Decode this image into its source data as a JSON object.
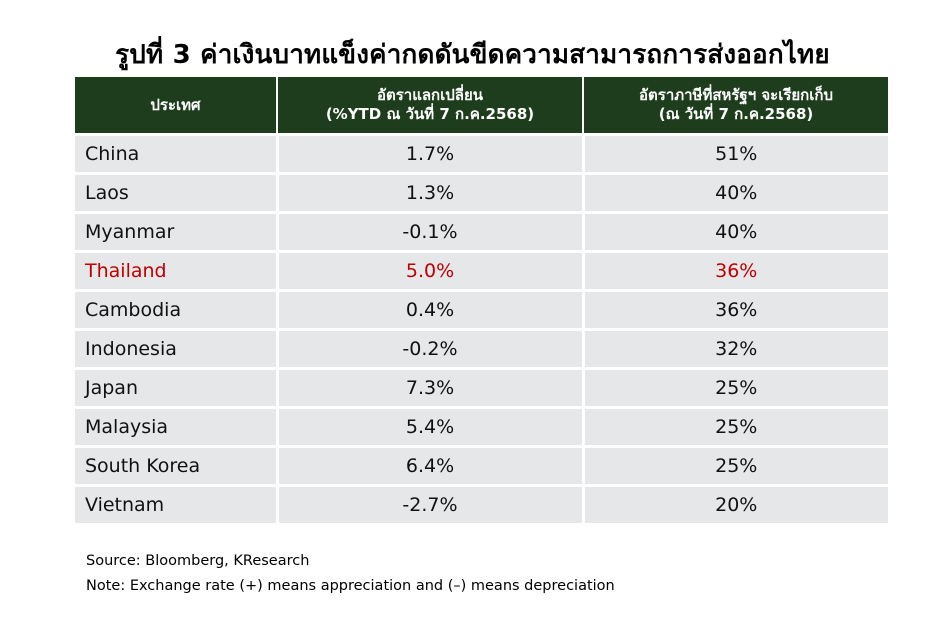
{
  "chart_data": {
    "type": "table",
    "title": "รูปที่ 3 ค่าเงินบาทแข็งค่ากดดันขีดความสามารถการส่งออกไทย",
    "columns": [
      "ประเทศ",
      "อัตราแลกเปลี่ยน\n(%YTD ณ วันที่ 7 ก.ค.2568)",
      "อัตราภาษีที่สหรัฐฯ จะเรียกเก็บ\n(ณ วันที่ 7 ก.ค.2568)"
    ],
    "rows": [
      {
        "country": "China",
        "fx": "1.7%",
        "tariff": "51%",
        "highlight": false
      },
      {
        "country": "Laos",
        "fx": "1.3%",
        "tariff": "40%",
        "highlight": false
      },
      {
        "country": "Myanmar",
        "fx": "-0.1%",
        "tariff": "40%",
        "highlight": false
      },
      {
        "country": "Thailand",
        "fx": "5.0%",
        "tariff": "36%",
        "highlight": true
      },
      {
        "country": "Cambodia",
        "fx": "0.4%",
        "tariff": "36%",
        "highlight": false
      },
      {
        "country": "Indonesia",
        "fx": "-0.2%",
        "tariff": "32%",
        "highlight": false
      },
      {
        "country": "Japan",
        "fx": "7.3%",
        "tariff": "25%",
        "highlight": false
      },
      {
        "country": "Malaysia",
        "fx": "5.4%",
        "tariff": "25%",
        "highlight": false
      },
      {
        "country": "South Korea",
        "fx": "6.4%",
        "tariff": "25%",
        "highlight": false
      },
      {
        "country": "Vietnam",
        "fx": "-2.7%",
        "tariff": "20%",
        "highlight": false
      }
    ]
  },
  "notes": {
    "source": "Source: Bloomberg, KResearch",
    "note": "Note: Exchange rate (+) means appreciation and (–) means depreciation"
  },
  "colors": {
    "header_bg": "#1e3d1c",
    "row_bg": "#e6e7e9",
    "highlight_text": "#c00000"
  }
}
